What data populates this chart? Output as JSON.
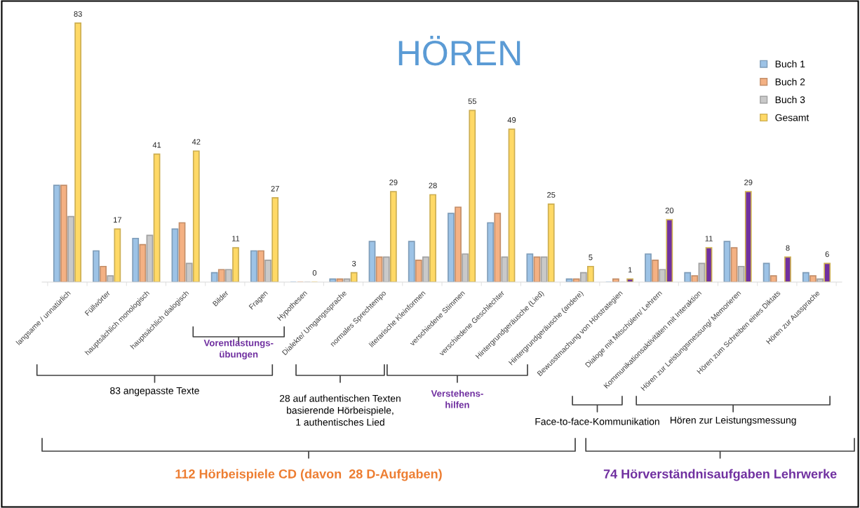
{
  "chart_data": {
    "type": "bar",
    "title": "HÖREN",
    "categories": [
      "langsame / unnatürlich",
      "Füllwörter",
      "hauptsächlich monologisch",
      "hauptsächlich dialogisch",
      "Bilder",
      "Fragen",
      "Hypothesen",
      "Dialekte/ Umgangssprache",
      "normales Sprechtempo",
      "literarische Kleinformen",
      "verschiedene Stimmen",
      "verschiedene Geschlechter",
      "Hintergrundgeräusche (Lied)",
      "Hintergrundgeräusche (andere)",
      "Bewusstmachung von Hörstrategien",
      "Dialoge mit Mitschülern/ Lehrern",
      "Kommunikationsaktivitäten mit Interaktion",
      "Hören zur Leistungsmessung/ Memorieren",
      "Hören zum Schreiben eines Diktats",
      "Hören zur Aussprache"
    ],
    "series": [
      {
        "name": "Buch 1",
        "color": "#9dc3e6",
        "values": [
          31,
          10,
          14,
          17,
          3,
          10,
          0,
          1,
          13,
          13,
          22,
          19,
          9,
          1,
          0,
          9,
          3,
          13,
          6,
          3
        ]
      },
      {
        "name": "Buch 2",
        "color": "#f4b183",
        "values": [
          31,
          5,
          12,
          19,
          4,
          10,
          0,
          1,
          8,
          7,
          24,
          22,
          8,
          1,
          1,
          7,
          2,
          11,
          2,
          2
        ]
      },
      {
        "name": "Buch 3",
        "color": "#c9c9c9",
        "values": [
          21,
          2,
          15,
          6,
          4,
          7,
          0,
          1,
          8,
          8,
          9,
          8,
          8,
          3,
          0,
          4,
          6,
          5,
          0,
          1
        ]
      },
      {
        "name": "Gesamt",
        "color": "#ffd966",
        "colors": [
          "#ffd966",
          "#ffd966",
          "#ffd966",
          "#ffd966",
          "#ffd966",
          "#ffd966",
          "#ffd966",
          "#ffd966",
          "#ffd966",
          "#ffd966",
          "#ffd966",
          "#ffd966",
          "#ffd966",
          "#ffd966",
          "#7030a0",
          "#7030a0",
          "#7030a0",
          "#7030a0",
          "#7030a0",
          "#7030a0"
        ],
        "values": [
          83,
          17,
          41,
          42,
          11,
          27,
          0,
          3,
          29,
          28,
          55,
          49,
          25,
          5,
          1,
          20,
          11,
          29,
          8,
          6
        ],
        "value_labels": [
          "83",
          "17",
          "41",
          "42",
          "11",
          "27",
          "0",
          "3",
          "29",
          "28",
          "55",
          "49",
          "25",
          "5",
          "1",
          "20",
          "11",
          "29",
          "8",
          "6"
        ]
      }
    ],
    "legend": "top right",
    "annotations": [
      "Vorentlastungs-\nübungen",
      "83 angepasste Texte",
      "28 auf authentischen Texten\nbasierende Hörbeispiele,\n1 authentisches Lied",
      "Verstehens-\nhilfen",
      "Face-to-face-Kommunikation",
      "Hören zur Leistungsmessung",
      "112 Hörbeispiele CD (davon  28 D-Aufgaben)",
      "74 Hörverständnisaufgaben Lehrwerke"
    ]
  }
}
